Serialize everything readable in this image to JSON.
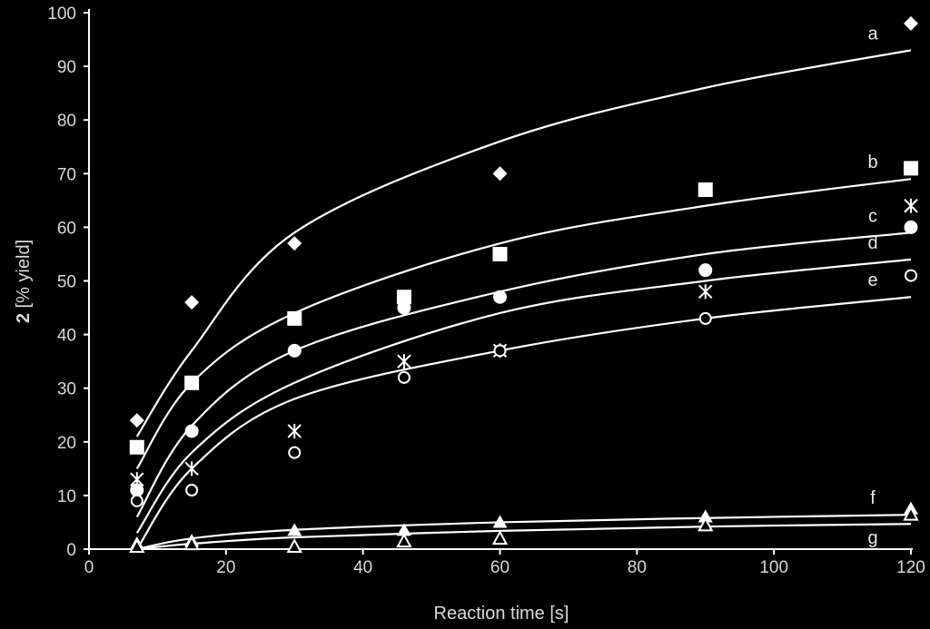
{
  "chart_data": {
    "type": "scatter",
    "title": "",
    "xlabel": "Reaction time [s]",
    "ylabel_bold": "2",
    "ylabel_rest": " [% yield]",
    "xlim": [
      0,
      120
    ],
    "ylim": [
      0,
      100
    ],
    "xticks": [
      0,
      20,
      40,
      60,
      80,
      100,
      120
    ],
    "yticks": [
      0,
      10,
      20,
      30,
      40,
      50,
      60,
      70,
      80,
      90,
      100
    ],
    "grid": false,
    "x": [
      7,
      15,
      30,
      46,
      60,
      90,
      120
    ],
    "series": [
      {
        "marker": "diamond",
        "fit_label": "a",
        "values": [
          24,
          46,
          57,
          null,
          70,
          null,
          98
        ],
        "fit_curve": [
          [
            7,
            21
          ],
          [
            15,
            37
          ],
          [
            30,
            59
          ],
          [
            60,
            76
          ],
          [
            90,
            86
          ],
          [
            120,
            93
          ]
        ]
      },
      {
        "marker": "square",
        "fit_label": "b",
        "values": [
          19,
          31,
          43,
          47,
          55,
          67,
          71
        ],
        "fit_curve": [
          [
            7,
            15
          ],
          [
            15,
            31
          ],
          [
            30,
            44
          ],
          [
            60,
            57
          ],
          [
            90,
            64
          ],
          [
            120,
            69
          ]
        ]
      },
      {
        "marker": "filled-circle",
        "fit_label": "c",
        "values": [
          11,
          22,
          37,
          45,
          47,
          52,
          60
        ],
        "fit_curve": [
          [
            7,
            6
          ],
          [
            15,
            23
          ],
          [
            30,
            37
          ],
          [
            60,
            48
          ],
          [
            90,
            55
          ],
          [
            120,
            59
          ]
        ]
      },
      {
        "marker": "asterisk",
        "fit_label": "d",
        "values": [
          13,
          15,
          22,
          35,
          37,
          48,
          64
        ],
        "fit_curve": [
          [
            7,
            3
          ],
          [
            15,
            18
          ],
          [
            30,
            31
          ],
          [
            60,
            44
          ],
          [
            90,
            50
          ],
          [
            120,
            54
          ]
        ]
      },
      {
        "marker": "open-circle",
        "fit_label": "e",
        "values": [
          9,
          11,
          18,
          32,
          37,
          43,
          51
        ],
        "fit_curve": [
          [
            7,
            0
          ],
          [
            15,
            15
          ],
          [
            30,
            28
          ],
          [
            60,
            37
          ],
          [
            90,
            43
          ],
          [
            120,
            47
          ]
        ]
      },
      {
        "marker": "filled-triangle",
        "fit_label": "f",
        "values": [
          1,
          1.5,
          3.5,
          3.5,
          5,
          6,
          7.5
        ],
        "fit_curve": [
          [
            7,
            0
          ],
          [
            15,
            2
          ],
          [
            30,
            3.6
          ],
          [
            60,
            5
          ],
          [
            90,
            5.8
          ],
          [
            120,
            6.4
          ]
        ]
      },
      {
        "marker": "open-triangle",
        "fit_label": "g",
        "values": [
          0.5,
          1,
          0.5,
          1.5,
          2,
          4.5,
          6.5
        ],
        "fit_curve": [
          [
            7,
            0
          ],
          [
            15,
            1
          ],
          [
            30,
            2.2
          ],
          [
            60,
            3.4
          ],
          [
            90,
            4.2
          ],
          [
            120,
            4.7
          ]
        ]
      }
    ],
    "colors": {
      "background": "#000000",
      "foreground": "#ffffff"
    }
  }
}
